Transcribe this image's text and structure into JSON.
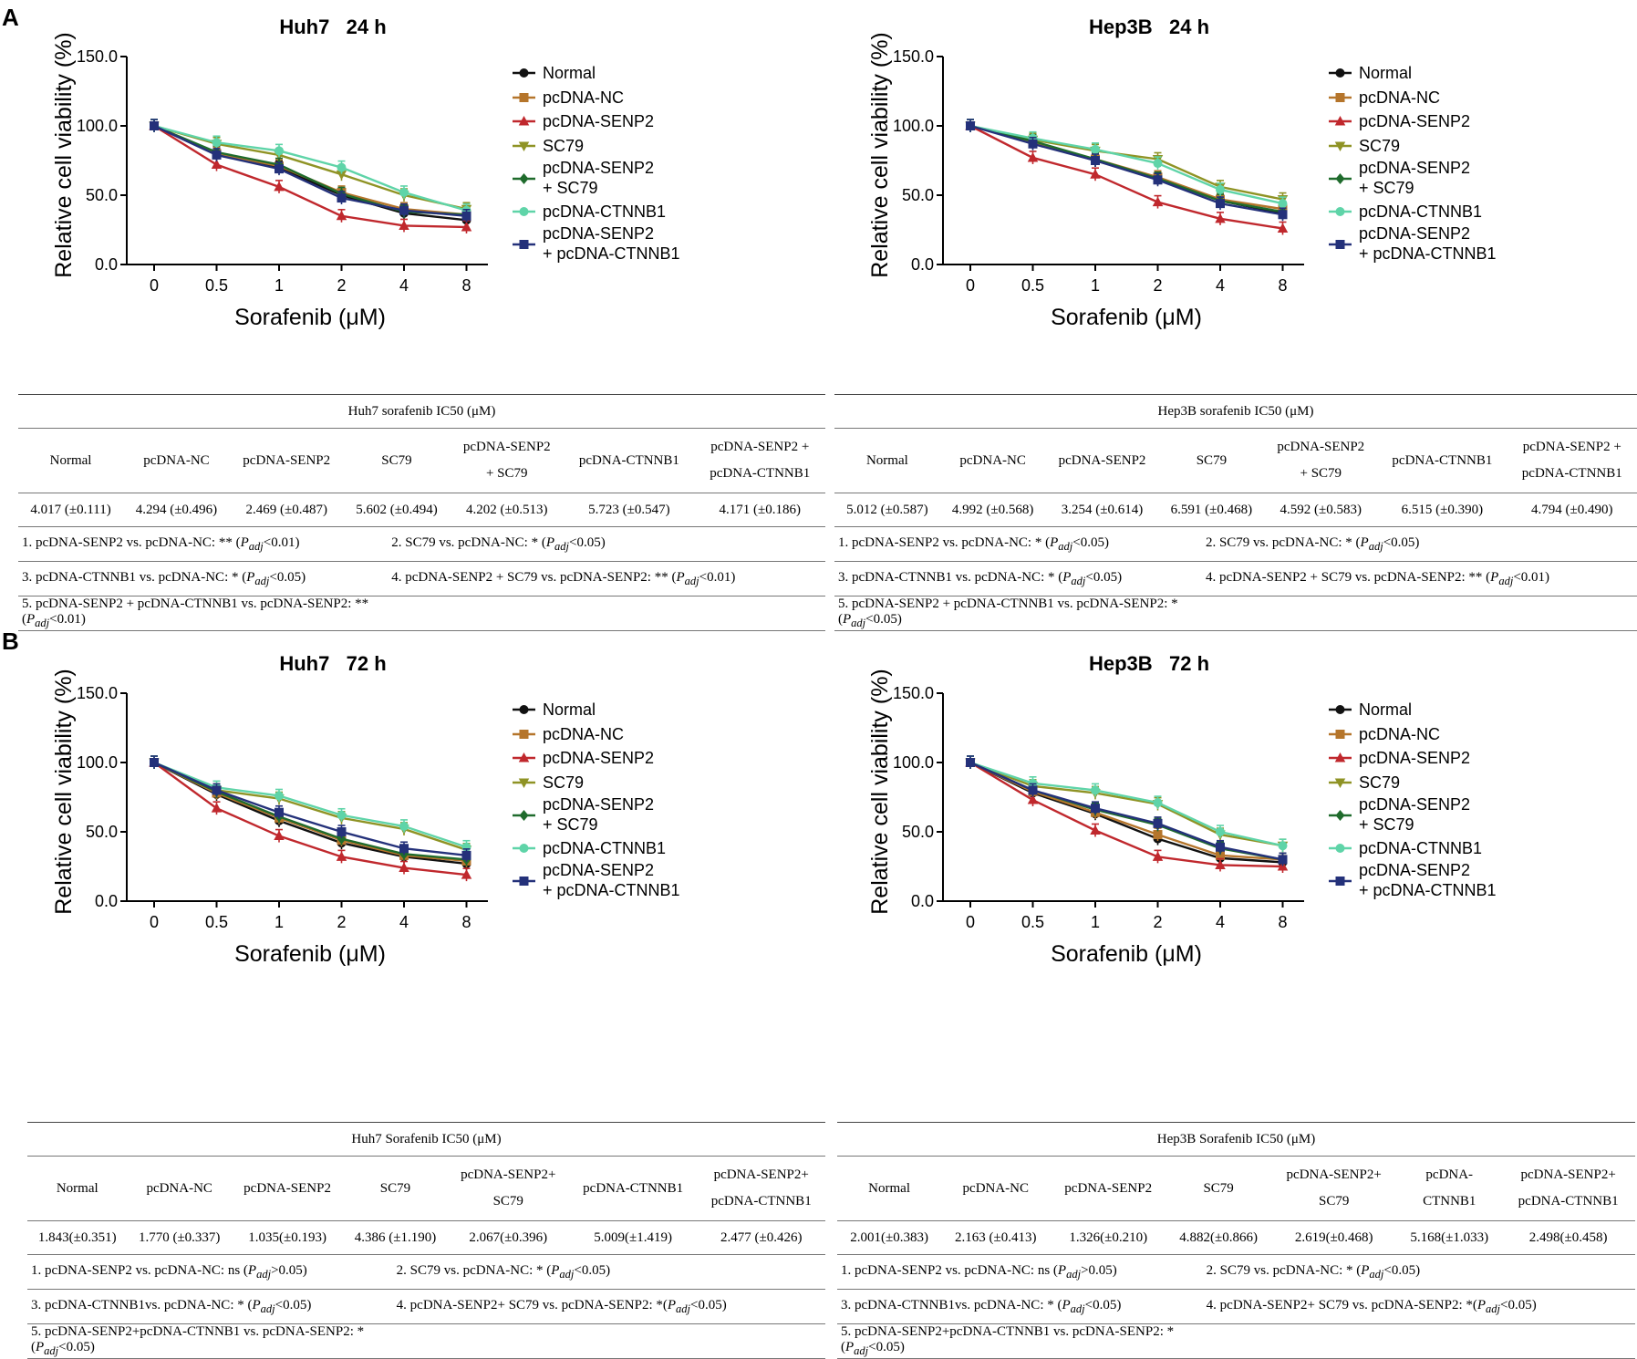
{
  "panels": [
    {
      "letter": "A"
    },
    {
      "letter": "B"
    }
  ],
  "legend": [
    {
      "label": "Normal",
      "color": "#111111",
      "marker": "circle"
    },
    {
      "label": "pcDNA-NC",
      "color": "#b5752b",
      "marker": "square"
    },
    {
      "label": "pcDNA-SENP2",
      "color": "#c0282d",
      "marker": "triangle-up"
    },
    {
      "label": "SC79",
      "color": "#8f9325",
      "marker": "triangle-down"
    },
    {
      "label": "pcDNA-SENP2\n+ SC79",
      "color": "#1f6b2c",
      "marker": "diamond"
    },
    {
      "label": "pcDNA-CTNNB1",
      "color": "#5fd4a8",
      "marker": "circle"
    },
    {
      "label": "pcDNA-SENP2\n+ pcDNA-CTNNB1",
      "color": "#24317a",
      "marker": "square"
    }
  ],
  "chart_data": [
    {
      "type": "line",
      "title": "Huh7   24 h",
      "xlabel": "Sorafenib (μM)",
      "ylabel": "Relative cell viability (%)",
      "categories": [
        "0",
        "0.5",
        "1",
        "2",
        "4",
        "8"
      ],
      "ylim": [
        0,
        150
      ],
      "yticks": [
        "0.0",
        "50.0",
        "100.0",
        "150.0"
      ],
      "series": [
        {
          "name": "Normal",
          "values": [
            100,
            80,
            70,
            50,
            37,
            32
          ]
        },
        {
          "name": "pcDNA-NC",
          "values": [
            100,
            80,
            71,
            52,
            40,
            36
          ]
        },
        {
          "name": "pcDNA-SENP2",
          "values": [
            100,
            72,
            56,
            35,
            28,
            27
          ]
        },
        {
          "name": "SC79",
          "values": [
            100,
            87,
            79,
            65,
            50,
            40
          ]
        },
        {
          "name": "pcDNA-SENP2 + SC79",
          "values": [
            100,
            81,
            72,
            51,
            38,
            36
          ]
        },
        {
          "name": "pcDNA-CTNNB1",
          "values": [
            100,
            88,
            82,
            70,
            52,
            39
          ]
        },
        {
          "name": "pcDNA-SENP2 + pcDNA-CTNNB1",
          "values": [
            100,
            79,
            69,
            48,
            39,
            35
          ]
        }
      ]
    },
    {
      "type": "line",
      "title": "Hep3B   24 h",
      "xlabel": "Sorafenib (μM)",
      "ylabel": "Relative cell viability (%)",
      "categories": [
        "0",
        "0.5",
        "1",
        "2",
        "4",
        "8"
      ],
      "ylim": [
        0,
        150
      ],
      "yticks": [
        "0.0",
        "50.0",
        "100.0",
        "150.0"
      ],
      "series": [
        {
          "name": "Normal",
          "values": [
            100,
            88,
            75,
            62,
            46,
            37
          ]
        },
        {
          "name": "pcDNA-NC",
          "values": [
            100,
            88,
            76,
            63,
            47,
            40
          ]
        },
        {
          "name": "pcDNA-SENP2",
          "values": [
            100,
            77,
            65,
            45,
            33,
            26
          ]
        },
        {
          "name": "SC79",
          "values": [
            100,
            90,
            82,
            76,
            56,
            47
          ]
        },
        {
          "name": "pcDNA-SENP2 + SC79",
          "values": [
            100,
            89,
            76,
            62,
            46,
            38
          ]
        },
        {
          "name": "pcDNA-CTNNB1",
          "values": [
            100,
            91,
            83,
            73,
            54,
            44
          ]
        },
        {
          "name": "pcDNA-SENP2 + pcDNA-CTNNB1",
          "values": [
            100,
            87,
            75,
            61,
            44,
            36
          ]
        }
      ]
    },
    {
      "type": "line",
      "title": "Huh7   72 h",
      "xlabel": "Sorafenib (μM)",
      "ylabel": "Relative cell viability (%)",
      "categories": [
        "0",
        "0.5",
        "1",
        "2",
        "4",
        "8"
      ],
      "ylim": [
        0,
        150
      ],
      "yticks": [
        "0.0",
        "50.0",
        "100.0",
        "150.0"
      ],
      "series": [
        {
          "name": "Normal",
          "values": [
            100,
            77,
            58,
            42,
            32,
            27
          ]
        },
        {
          "name": "pcDNA-NC",
          "values": [
            100,
            78,
            60,
            44,
            33,
            29
          ]
        },
        {
          "name": "pcDNA-SENP2",
          "values": [
            100,
            67,
            47,
            32,
            24,
            19
          ]
        },
        {
          "name": "SC79",
          "values": [
            100,
            80,
            74,
            60,
            52,
            37
          ]
        },
        {
          "name": "pcDNA-SENP2 + SC79",
          "values": [
            100,
            79,
            61,
            45,
            34,
            30
          ]
        },
        {
          "name": "pcDNA-CTNNB1",
          "values": [
            100,
            82,
            76,
            62,
            54,
            39
          ]
        },
        {
          "name": "pcDNA-SENP2 + pcDNA-CTNNB1",
          "values": [
            100,
            80,
            64,
            50,
            38,
            33
          ]
        }
      ]
    },
    {
      "type": "line",
      "title": "Hep3B   72 h",
      "xlabel": "Sorafenib (μM)",
      "ylabel": "Relative cell viability (%)",
      "categories": [
        "0",
        "0.5",
        "1",
        "2",
        "4",
        "8"
      ],
      "ylim": [
        0,
        150
      ],
      "yticks": [
        "0.0",
        "50.0",
        "100.0",
        "150.0"
      ],
      "series": [
        {
          "name": "Normal",
          "values": [
            100,
            78,
            63,
            45,
            31,
            28
          ]
        },
        {
          "name": "pcDNA-NC",
          "values": [
            100,
            79,
            64,
            48,
            33,
            30
          ]
        },
        {
          "name": "pcDNA-SENP2",
          "values": [
            100,
            73,
            51,
            32,
            26,
            25
          ]
        },
        {
          "name": "SC79",
          "values": [
            100,
            83,
            78,
            70,
            48,
            40
          ]
        },
        {
          "name": "pcDNA-SENP2 + SC79",
          "values": [
            100,
            80,
            66,
            55,
            38,
            30
          ]
        },
        {
          "name": "pcDNA-CTNNB1",
          "values": [
            100,
            85,
            80,
            71,
            50,
            40
          ]
        },
        {
          "name": "pcDNA-SENP2 + pcDNA-CTNNB1",
          "values": [
            100,
            80,
            67,
            56,
            39,
            30
          ]
        }
      ]
    }
  ],
  "tables": [
    {
      "title": "Huh7 sorafenib IC50 (μM)",
      "columns": [
        [
          "Normal"
        ],
        [
          "pcDNA-NC"
        ],
        [
          "pcDNA-SENP2"
        ],
        [
          "SC79"
        ],
        [
          "pcDNA-SENP2",
          "+ SC79"
        ],
        [
          "pcDNA-CTNNB1"
        ],
        [
          "pcDNA-SENP2 +",
          "pcDNA-CTNNB1"
        ]
      ],
      "values": [
        "4.017 (±0.111)",
        "4.294 (±0.496)",
        "2.469 (±0.487)",
        "5.602 (±0.494)",
        "4.202 (±0.513)",
        "5.723 (±0.547)",
        "4.171 (±0.186)"
      ],
      "notes": [
        [
          "1. pcDNA-SENP2 vs. pcDNA-NC: ** (P<sub>adj</sub>&lt;0.01)",
          "2. SC79 vs. pcDNA-NC: * (P<sub>adj</sub>&lt;0.05)"
        ],
        [
          "3. pcDNA-CTNNB1 vs. pcDNA-NC: * (P<sub>adj</sub>&lt;0.05)",
          "4. pcDNA-SENP2 + SC79 vs. pcDNA-SENP2: ** (P<sub>adj</sub>&lt;0.01)"
        ],
        [
          "5. pcDNA-SENP2 + pcDNA-CTNNB1 vs. pcDNA-SENP2: ** (P<sub>adj</sub>&lt;0.01)"
        ]
      ]
    },
    {
      "title": "Hep3B sorafenib IC50 (μM)",
      "columns": [
        [
          "Normal"
        ],
        [
          "pcDNA-NC"
        ],
        [
          "pcDNA-SENP2"
        ],
        [
          "SC79"
        ],
        [
          "pcDNA-SENP2",
          "+ SC79"
        ],
        [
          "pcDNA-CTNNB1"
        ],
        [
          "pcDNA-SENP2 +",
          "pcDNA-CTNNB1"
        ]
      ],
      "values": [
        "5.012 (±0.587)",
        "4.992 (±0.568)",
        "3.254 (±0.614)",
        "6.591 (±0.468)",
        "4.592 (±0.583)",
        "6.515 (±0.390)",
        "4.794 (±0.490)"
      ],
      "notes": [
        [
          "1. pcDNA-SENP2 vs. pcDNA-NC: * (P<sub>adj</sub>&lt;0.05)",
          "2. SC79 vs. pcDNA-NC: * (P<sub>adj</sub>&lt;0.05)"
        ],
        [
          "3. pcDNA-CTNNB1 vs. pcDNA-NC: * (P<sub>adj</sub>&lt;0.05)",
          "4. pcDNA-SENP2 + SC79 vs. pcDNA-SENP2: ** (P<sub>adj</sub>&lt;0.01)"
        ],
        [
          "5. pcDNA-SENP2 + pcDNA-CTNNB1 vs. pcDNA-SENP2: * (P<sub>adj</sub>&lt;0.05)"
        ]
      ]
    },
    {
      "title": "Huh7 Sorafenib IC50 (μM)",
      "columns": [
        [
          "Normal"
        ],
        [
          "pcDNA-NC"
        ],
        [
          "pcDNA-SENP2"
        ],
        [
          "SC79"
        ],
        [
          "pcDNA-SENP2+",
          "SC79"
        ],
        [
          "pcDNA-CTNNB1"
        ],
        [
          "pcDNA-SENP2+",
          "pcDNA-CTNNB1"
        ]
      ],
      "values": [
        "1.843(±0.351)",
        "1.770 (±0.337)",
        "1.035(±0.193)",
        "4.386 (±1.190)",
        "2.067(±0.396)",
        "5.009(±1.419)",
        "2.477 (±0.426)"
      ],
      "notes": [
        [
          "1. pcDNA-SENP2 vs. pcDNA-NC: ns (P<sub>adj</sub>&gt;0.05)",
          "2. SC79 vs. pcDNA-NC: * (P<sub>adj</sub>&lt;0.05)"
        ],
        [
          "3. pcDNA-CTNNB1vs. pcDNA-NC: * (P<sub>adj</sub>&lt;0.05)",
          "4. pcDNA-SENP2+ SC79 vs. pcDNA-SENP2: *(P<sub>adj</sub>&lt;0.05)"
        ],
        [
          "5. pcDNA-SENP2+pcDNA-CTNNB1 vs. pcDNA-SENP2: *(P<sub>adj</sub>&lt;0.05)"
        ]
      ]
    },
    {
      "title": "Hep3B Sorafenib IC50 (μM)",
      "columns": [
        [
          "Normal"
        ],
        [
          "pcDNA-NC"
        ],
        [
          "pcDNA-SENP2"
        ],
        [
          "SC79"
        ],
        [
          "pcDNA-SENP2+",
          "SC79"
        ],
        [
          "pcDNA-",
          "CTNNB1"
        ],
        [
          "pcDNA-SENP2+",
          "pcDNA-CTNNB1"
        ]
      ],
      "values": [
        "2.001(±0.383)",
        "2.163 (±0.413)",
        "1.326(±0.210)",
        "4.882(±0.866)",
        "2.619(±0.468)",
        "5.168(±1.033)",
        "2.498(±0.458)"
      ],
      "notes": [
        [
          "1. pcDNA-SENP2 vs. pcDNA-NC: ns (P<sub>adj</sub>&gt;0.05)",
          "2. SC79 vs. pcDNA-NC: * (P<sub>adj</sub>&lt;0.05)"
        ],
        [
          "3. pcDNA-CTNNB1vs. pcDNA-NC: * (P<sub>adj</sub>&lt;0.05)",
          "4. pcDNA-SENP2+ SC79 vs. pcDNA-SENP2: *(P<sub>adj</sub>&lt;0.05)"
        ],
        [
          "5. pcDNA-SENP2+pcDNA-CTNNB1 vs. pcDNA-SENP2: *(P<sub>adj</sub>&lt;0.05)"
        ]
      ]
    }
  ]
}
